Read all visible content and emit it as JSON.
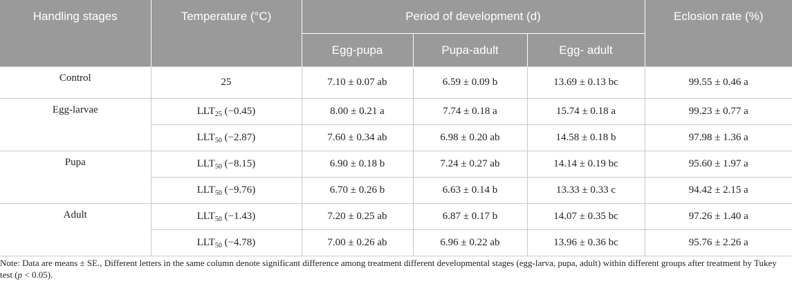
{
  "headers": {
    "handling_stages": "Handling stages",
    "temperature": "Temperature (°C)",
    "period": "Period of development (d)",
    "eclosion": "Eclosion rate (%)",
    "egg_pupa": "Egg-pupa",
    "pupa_adult": "Pupa-adult",
    "egg_adult": "Egg- adult"
  },
  "stages": {
    "control": "Control",
    "egg_larvae": "Egg-larvae",
    "pupa": "Pupa",
    "adult": "Adult"
  },
  "rows": [
    {
      "temp_prefix": "",
      "temp_sub": "",
      "temp_suffix": "25",
      "egg_pupa": "7.10 ± 0.07 ab",
      "pupa_adult": "6.59 ± 0.09 b",
      "egg_adult": "13.69 ± 0.13 bc",
      "eclosion": "99.55 ± 0.46 a"
    },
    {
      "temp_prefix": "LLT",
      "temp_sub": "25",
      "temp_suffix": " (−0.45)",
      "egg_pupa": "8.00 ± 0.21 a",
      "pupa_adult": "7.74 ± 0.18 a",
      "egg_adult": "15.74 ± 0.18 a",
      "eclosion": "99.23 ± 0.77 a"
    },
    {
      "temp_prefix": "LLT",
      "temp_sub": "50",
      "temp_suffix": " (−2.87)",
      "egg_pupa": "7.60 ± 0.34 ab",
      "pupa_adult": "6.98 ± 0.20 ab",
      "egg_adult": "14.58 ± 0.18 b",
      "eclosion": "97.98 ± 1.36 a"
    },
    {
      "temp_prefix": "LLT",
      "temp_sub": "50",
      "temp_suffix": " (−8.15)",
      "egg_pupa": "6.90 ± 0.18 b",
      "pupa_adult": "7.24 ± 0.27 ab",
      "egg_adult": "14.14 ± 0.19 bc",
      "eclosion": "95.60 ± 1.97 a"
    },
    {
      "temp_prefix": "LLT",
      "temp_sub": "50",
      "temp_suffix": " (−9.76)",
      "egg_pupa": "6.70 ± 0.26 b",
      "pupa_adult": "6.63 ± 0.14 b",
      "egg_adult": "13.33 ± 0.33 c",
      "eclosion": "94.42 ± 2.15 a"
    },
    {
      "temp_prefix": "LLT",
      "temp_sub": "50",
      "temp_suffix": " (−1.43)",
      "egg_pupa": "7.20 ± 0.25 ab",
      "pupa_adult": "6.87 ± 0.17 b",
      "egg_adult": "14.07 ± 0.35 bc",
      "eclosion": "97.26 ± 1.40 a"
    },
    {
      "temp_prefix": "LLT",
      "temp_sub": "50",
      "temp_suffix": " (−4.78)",
      "egg_pupa": "7.00 ± 0.26 ab",
      "pupa_adult": "6.96 ± 0.22 ab",
      "egg_adult": "13.96 ± 0.36 bc",
      "eclosion": "95.76 ± 2.26 a"
    }
  ],
  "note": {
    "text_before": "Note: Data are means ± SE., Different letters in the same column denote significant difference among treatment different developmental stages (egg-larva, pupa, adult) within different groups after treatment by Tukey test (",
    "p_symbol": "p",
    "text_after": " < 0.05)."
  },
  "colors": {
    "header_bg": "#9a9a9a",
    "header_text": "#ffffff",
    "grid_line": "#c8c8c8"
  }
}
